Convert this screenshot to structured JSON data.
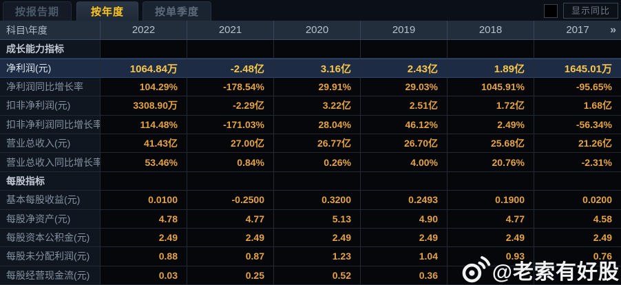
{
  "tabs": [
    {
      "label": "按报告期",
      "selected": false
    },
    {
      "label": "按年度",
      "selected": true
    },
    {
      "label": "按单季度",
      "selected": false
    }
  ],
  "controls": {
    "show_yoy_label": "显示同比",
    "checkbox_checked": false
  },
  "table": {
    "corner_label": "科目\\年度",
    "years": [
      "2022",
      "2021",
      "2020",
      "2019",
      "2018",
      "2017"
    ],
    "more_years_icon": "»",
    "rows": [
      {
        "type": "section",
        "label": "成长能力指标",
        "values": [
          "",
          "",
          "",
          "",
          "",
          ""
        ]
      },
      {
        "type": "highlight",
        "label": "净利润(元)",
        "values": [
          "1064.84万",
          "-2.48亿",
          "3.16亿",
          "2.43亿",
          "1.89亿",
          "1645.01万"
        ]
      },
      {
        "type": "data",
        "label": "净利润同比增长率",
        "values": [
          "104.29%",
          "-178.54%",
          "29.91%",
          "29.03%",
          "1045.91%",
          "-95.65%"
        ]
      },
      {
        "type": "data",
        "label": "扣非净利润(元)",
        "values": [
          "3308.90万",
          "-2.29亿",
          "3.22亿",
          "2.51亿",
          "1.72亿",
          "1.68亿"
        ]
      },
      {
        "type": "data",
        "label": "扣非净利润同比增长率",
        "values": [
          "114.48%",
          "-171.03%",
          "28.04%",
          "46.12%",
          "2.49%",
          "-56.34%"
        ]
      },
      {
        "type": "data",
        "label": "营业总收入(元)",
        "values": [
          "41.43亿",
          "27.00亿",
          "26.77亿",
          "26.70亿",
          "25.68亿",
          "21.26亿"
        ]
      },
      {
        "type": "data",
        "label": "营业总收入同比增长率",
        "values": [
          "53.46%",
          "0.84%",
          "0.26%",
          "4.00%",
          "20.76%",
          "-2.31%"
        ]
      },
      {
        "type": "section",
        "label": "每股指标",
        "values": [
          "",
          "",
          "",
          "",
          "",
          ""
        ]
      },
      {
        "type": "data",
        "label": "基本每股收益(元)",
        "values": [
          "0.0100",
          "-0.2500",
          "0.3200",
          "0.2493",
          "0.1900",
          "0.0200"
        ]
      },
      {
        "type": "data",
        "label": "每股净资产(元)",
        "values": [
          "4.78",
          "4.77",
          "5.13",
          "4.90",
          "4.77",
          "4.58"
        ]
      },
      {
        "type": "data",
        "label": "每股资本公积金(元)",
        "values": [
          "2.49",
          "2.49",
          "2.49",
          "2.49",
          "2.49",
          "2.49"
        ]
      },
      {
        "type": "data",
        "label": "每股未分配利润(元)",
        "values": [
          "0.88",
          "0.87",
          "1.23",
          "1.04",
          "0.93",
          "0.76"
        ]
      },
      {
        "type": "data",
        "label": "每股经营现金流(元)",
        "values": [
          "0.03",
          "0.25",
          "0.52",
          "0.36",
          "",
          ""
        ]
      }
    ]
  },
  "watermark": {
    "icon": "weibo-icon",
    "text": "@老索有好股"
  },
  "colors": {
    "value_gold": "#e5a43e",
    "highlight_gold": "#f7c64b",
    "tab_active_text": "#ffc61b",
    "highlight_row_bg": "#1d2b44",
    "header_bg": "#232e3d",
    "label_col_bg": "#10161f",
    "cell_bg": "#05070b",
    "watermark_color": "#ffffff"
  }
}
